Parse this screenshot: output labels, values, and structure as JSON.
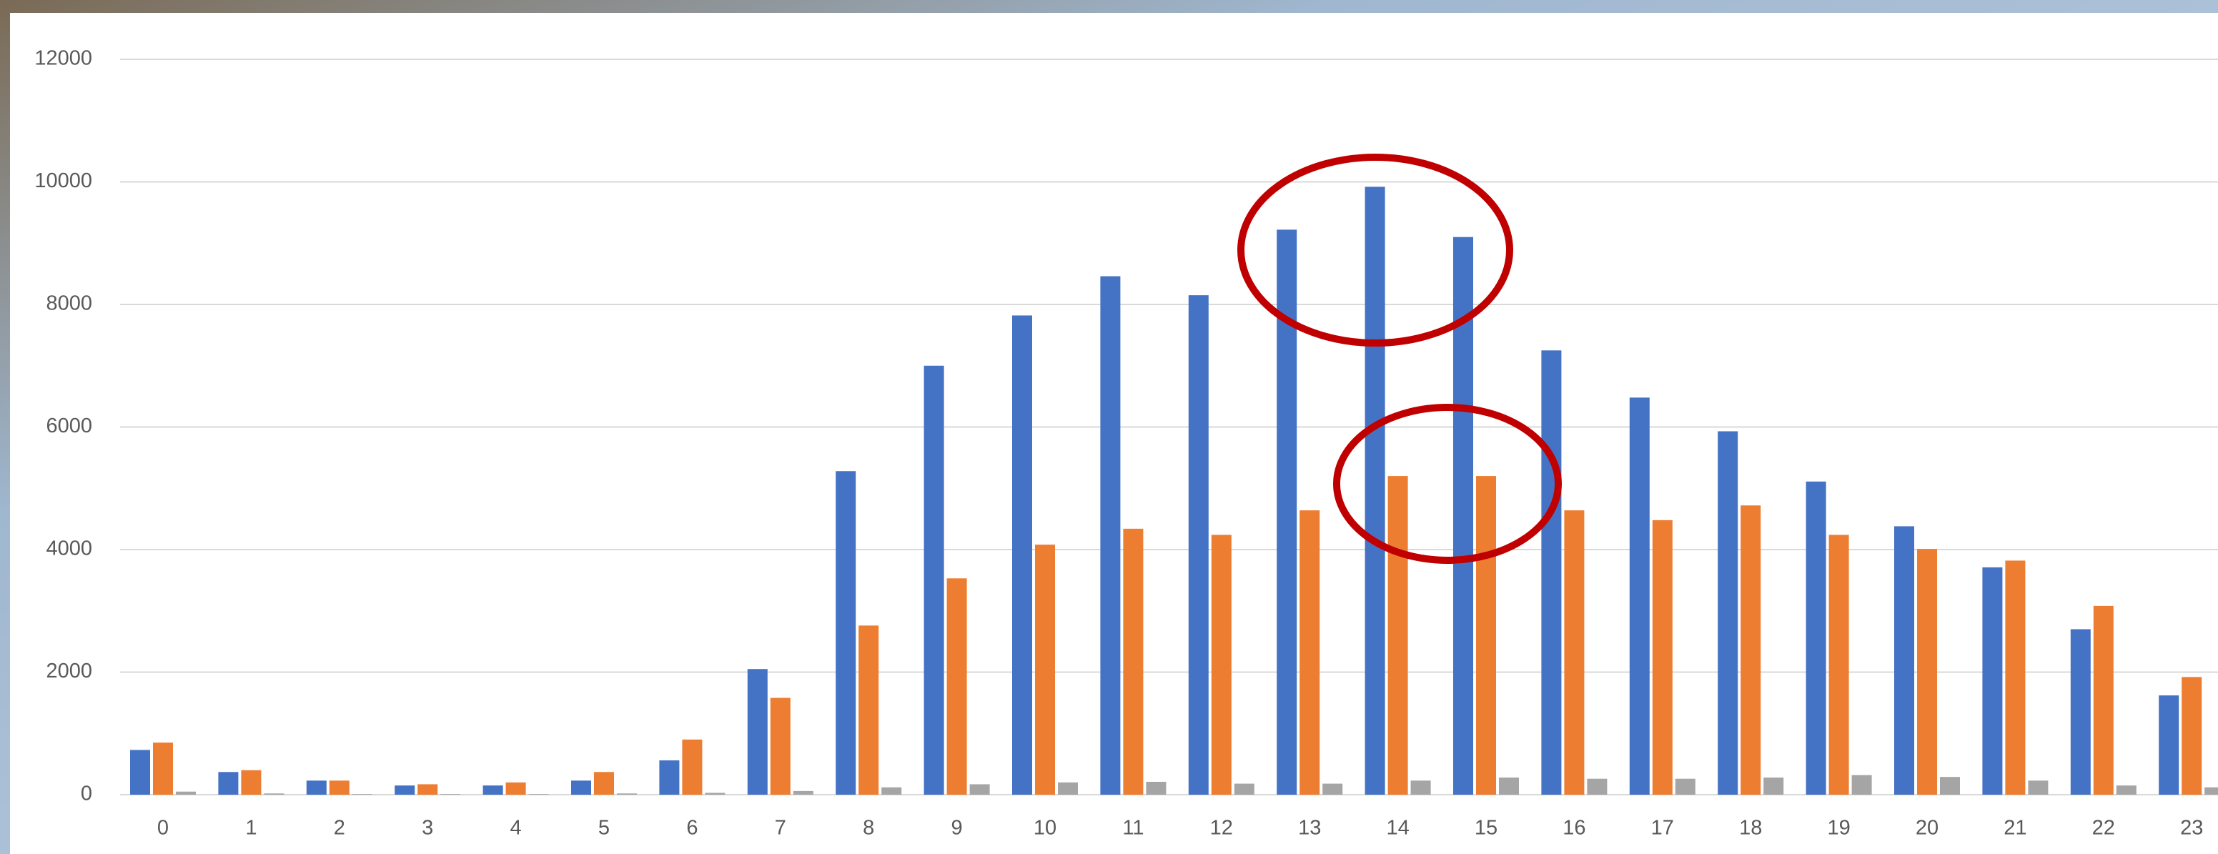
{
  "chart_data": {
    "type": "bar",
    "categories": [
      "0",
      "1",
      "2",
      "3",
      "4",
      "5",
      "6",
      "7",
      "8",
      "9",
      "10",
      "11",
      "12",
      "13",
      "14",
      "15",
      "16",
      "17",
      "18",
      "19",
      "20",
      "21",
      "22",
      "23"
    ],
    "series": [
      {
        "color": "#4472c4",
        "values": [
          730,
          370,
          230,
          150,
          150,
          230,
          560,
          2050,
          5280,
          7000,
          7820,
          8460,
          8150,
          9220,
          9920,
          9100,
          7250,
          6480,
          5930,
          5110,
          4380,
          3710,
          2700,
          1620
        ]
      },
      {
        "color": "#ed7d31",
        "values": [
          850,
          400,
          230,
          170,
          200,
          370,
          900,
          1580,
          2760,
          3530,
          4080,
          4340,
          4240,
          4640,
          5200,
          5200,
          4640,
          4480,
          4720,
          4240,
          4010,
          3820,
          3080,
          1920
        ]
      },
      {
        "color": "#a5a5a5",
        "values": [
          50,
          20,
          10,
          10,
          10,
          20,
          30,
          60,
          120,
          170,
          200,
          210,
          180,
          180,
          230,
          280,
          260,
          260,
          280,
          320,
          290,
          230,
          150,
          120
        ]
      }
    ],
    "ylim": [
      0,
      12000
    ],
    "yticks": [
      0,
      2000,
      4000,
      6000,
      8000,
      10000,
      12000
    ],
    "grid": true
  }
}
